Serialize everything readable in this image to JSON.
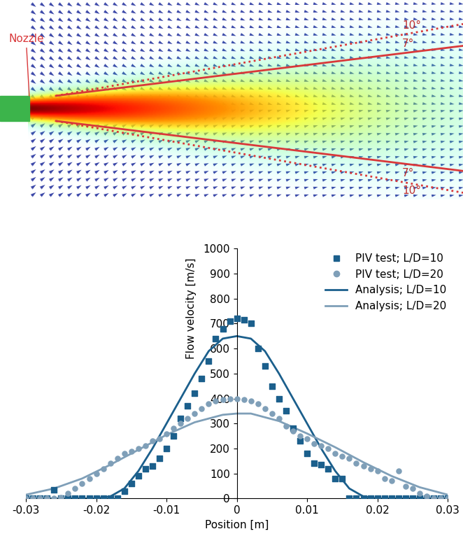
{
  "chart_data": {
    "type": "scatter",
    "xlabel": "Position [m]",
    "ylabel": "Flow velocity [m/s]",
    "xlim": [
      -0.03,
      0.03
    ],
    "ylim": [
      0,
      1000
    ],
    "xticks": [
      -0.03,
      -0.02,
      -0.01,
      0,
      0.01,
      0.02,
      0.03
    ],
    "yticks": [
      0,
      100,
      200,
      300,
      400,
      500,
      600,
      700,
      800,
      900,
      1000
    ],
    "grid": false,
    "legend": "upper right",
    "series": [
      {
        "name": "PIV test; L/D=10",
        "type": "scatter",
        "marker": "square",
        "color": "#1b5f8c",
        "x": [
          -0.03,
          -0.029,
          -0.028,
          -0.027,
          -0.026,
          -0.025,
          -0.024,
          -0.023,
          -0.022,
          -0.021,
          -0.02,
          -0.019,
          -0.018,
          -0.017,
          -0.016,
          -0.015,
          -0.014,
          -0.013,
          -0.012,
          -0.011,
          -0.01,
          -0.009,
          -0.008,
          -0.007,
          -0.006,
          -0.005,
          -0.004,
          -0.003,
          -0.002,
          -0.001,
          0.0,
          0.001,
          0.002,
          0.003,
          0.004,
          0.005,
          0.006,
          0.007,
          0.008,
          0.009,
          0.01,
          0.011,
          0.012,
          0.013,
          0.014,
          0.015,
          0.016,
          0.017,
          0.018,
          0.019,
          0.02,
          0.021,
          0.022,
          0.023,
          0.024,
          0.025,
          0.026,
          0.027,
          0.028,
          0.029,
          0.03
        ],
        "values": [
          0,
          0,
          0,
          0,
          35,
          0,
          0,
          0,
          0,
          0,
          0,
          0,
          0,
          0,
          30,
          60,
          90,
          120,
          130,
          160,
          200,
          250,
          320,
          370,
          420,
          480,
          550,
          640,
          680,
          710,
          720,
          715,
          700,
          600,
          530,
          450,
          400,
          350,
          280,
          230,
          180,
          140,
          135,
          120,
          80,
          80,
          0,
          0,
          0,
          0,
          0,
          0,
          0,
          0,
          0,
          0,
          0,
          0,
          0,
          0,
          0
        ]
      },
      {
        "name": "PIV test; L/D=20",
        "type": "scatter",
        "marker": "circle",
        "color": "#7f9fb8",
        "x": [
          -0.03,
          -0.029,
          -0.028,
          -0.027,
          -0.026,
          -0.025,
          -0.024,
          -0.023,
          -0.022,
          -0.021,
          -0.02,
          -0.019,
          -0.018,
          -0.017,
          -0.016,
          -0.015,
          -0.014,
          -0.013,
          -0.012,
          -0.011,
          -0.01,
          -0.009,
          -0.008,
          -0.007,
          -0.006,
          -0.005,
          -0.004,
          -0.003,
          -0.002,
          -0.001,
          0.0,
          0.001,
          0.002,
          0.003,
          0.004,
          0.005,
          0.006,
          0.007,
          0.008,
          0.009,
          0.01,
          0.011,
          0.012,
          0.013,
          0.014,
          0.015,
          0.016,
          0.017,
          0.018,
          0.019,
          0.02,
          0.021,
          0.022,
          0.023,
          0.024,
          0.025,
          0.026,
          0.027,
          0.028,
          0.029,
          0.03
        ],
        "values": [
          0,
          0,
          0,
          0,
          0,
          5,
          20,
          40,
          60,
          80,
          100,
          120,
          140,
          160,
          180,
          190,
          200,
          210,
          230,
          240,
          260,
          280,
          300,
          320,
          340,
          360,
          380,
          390,
          395,
          400,
          400,
          395,
          390,
          380,
          360,
          340,
          320,
          290,
          270,
          250,
          240,
          220,
          210,
          200,
          180,
          170,
          160,
          140,
          130,
          120,
          110,
          80,
          70,
          110,
          50,
          40,
          20,
          10,
          0,
          0,
          0
        ]
      },
      {
        "name": "Analysis; L/D=10",
        "type": "line",
        "line_style": "solid",
        "color": "#1b5f8c",
        "x": [
          -0.03,
          -0.02,
          -0.018,
          -0.016,
          -0.014,
          -0.012,
          -0.01,
          -0.008,
          -0.006,
          -0.004,
          -0.002,
          0.0,
          0.002,
          0.004,
          0.006,
          0.008,
          0.01,
          0.012,
          0.014,
          0.016,
          0.018,
          0.02,
          0.03
        ],
        "values": [
          0,
          0,
          8,
          40,
          110,
          200,
          300,
          400,
          500,
          590,
          640,
          650,
          640,
          590,
          500,
          400,
          300,
          200,
          110,
          40,
          8,
          0,
          0
        ]
      },
      {
        "name": "Analysis; L/D=20",
        "type": "line",
        "line_style": "solid",
        "color": "#7f9fb8",
        "x": [
          -0.03,
          -0.026,
          -0.022,
          -0.018,
          -0.014,
          -0.01,
          -0.006,
          -0.002,
          0.0,
          0.002,
          0.006,
          0.01,
          0.014,
          0.018,
          0.022,
          0.026,
          0.03
        ],
        "values": [
          15,
          40,
          80,
          135,
          195,
          255,
          305,
          335,
          340,
          340,
          310,
          260,
          205,
          145,
          90,
          45,
          15
        ]
      }
    ]
  },
  "flow_image": {
    "label": "Nozzle",
    "angles": [
      {
        "value": 10,
        "label": "10°",
        "side": "top",
        "line_style": "dotted"
      },
      {
        "value": 7,
        "label": "7°",
        "side": "top",
        "line_style": "solid"
      },
      {
        "value": 7,
        "label": "7°",
        "side": "bottom",
        "line_style": "solid"
      },
      {
        "value": 10,
        "label": "10°",
        "side": "bottom",
        "line_style": "dotted"
      }
    ]
  }
}
